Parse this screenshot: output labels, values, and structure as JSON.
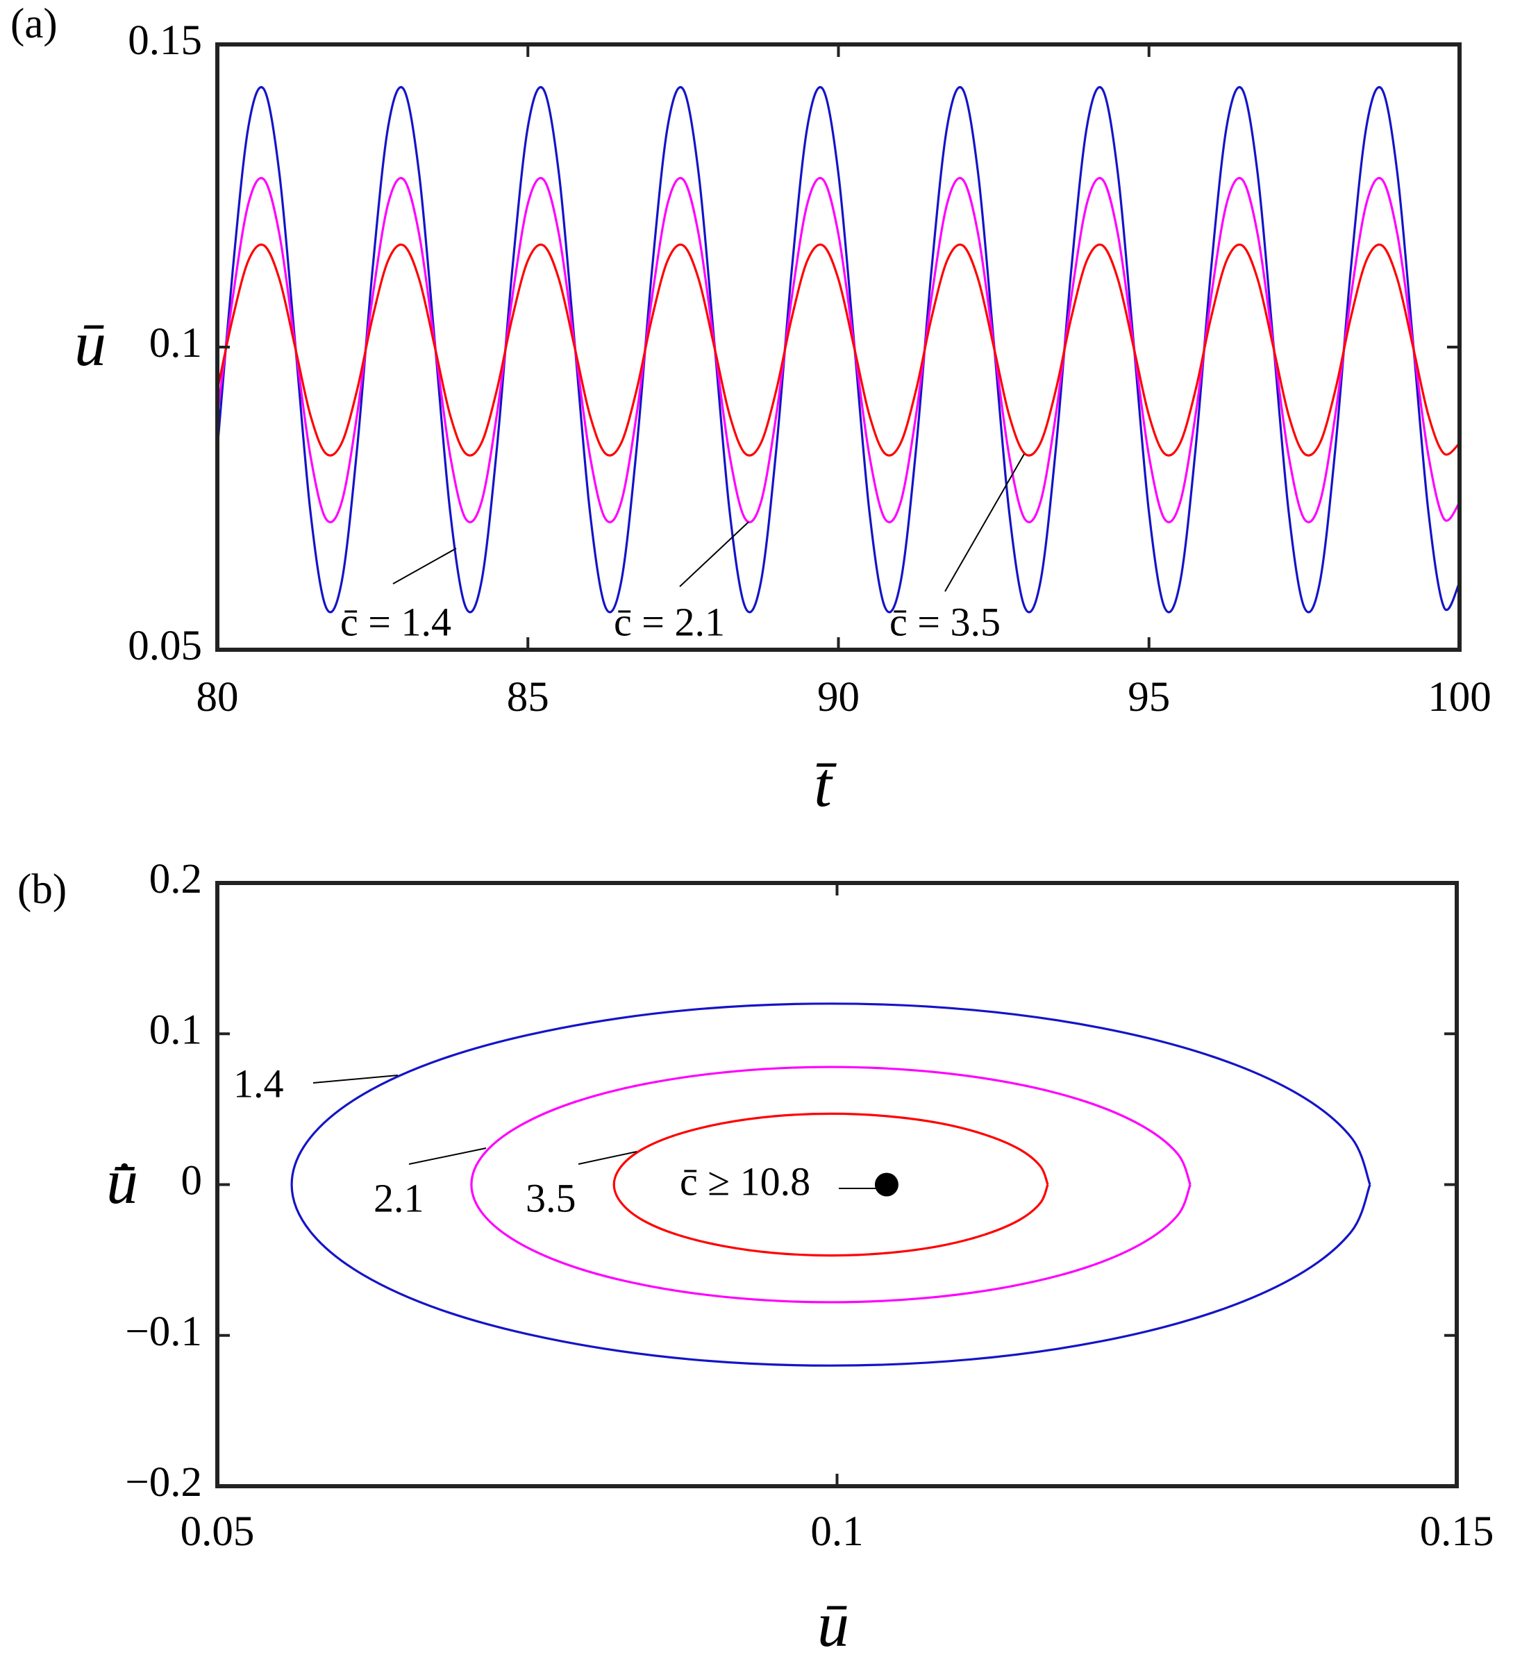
{
  "chart_data": [
    {
      "type": "line",
      "panel": "(a)",
      "xlabel": "t̄",
      "ylabel": "ū",
      "xlim": [
        80,
        100
      ],
      "ylim": [
        0.05,
        0.15
      ],
      "xticks": [
        80,
        85,
        90,
        95,
        100
      ],
      "yticks": [
        0.05,
        0.1,
        0.15
      ],
      "x": [
        80,
        80.25,
        80.5,
        80.75,
        81,
        81.25,
        81.5,
        81.75,
        82,
        82.25,
        82.5,
        82.75,
        83,
        83.25,
        83.5,
        83.75,
        84,
        84.25,
        84.5,
        84.75,
        85,
        85.25,
        85.5,
        85.75,
        86,
        86.25,
        86.5,
        86.75,
        87,
        87.25,
        87.5,
        87.75,
        88,
        88.25,
        88.5,
        88.75,
        89,
        89.25,
        89.5,
        89.75,
        90,
        90.25,
        90.5,
        90.75,
        91,
        91.25,
        91.5,
        91.75,
        92,
        92.25,
        92.5,
        92.75,
        93,
        93.25,
        93.5,
        93.75,
        94,
        94.25,
        94.5,
        94.75,
        95,
        95.25,
        95.5,
        95.75,
        96,
        96.25,
        96.5,
        96.75,
        97,
        97.25,
        97.5,
        97.75,
        98,
        98.25,
        98.5,
        98.75,
        99,
        99.25,
        99.5,
        99.75,
        100
      ],
      "series": [
        {
          "name": "c̄ = 1.4",
          "color": "#1414c8",
          "values": [
            0.0832,
            0.1129,
            0.1364,
            0.1426,
            0.1286,
            0.101,
            0.0727,
            0.057,
            0.0611,
            0.0832,
            0.1129,
            0.1364,
            0.1426,
            0.1286,
            0.101,
            0.0727,
            0.057,
            0.0611,
            0.0832,
            0.1129,
            0.1364,
            0.1426,
            0.1286,
            0.101,
            0.0727,
            0.057,
            0.0611,
            0.0832,
            0.1129,
            0.1364,
            0.1426,
            0.1286,
            0.101,
            0.0727,
            0.057,
            0.0611,
            0.0832,
            0.1129,
            0.1364,
            0.1426,
            0.1286,
            0.101,
            0.0727,
            0.057,
            0.0611,
            0.0832,
            0.1129,
            0.1364,
            0.1426,
            0.1286,
            0.101,
            0.0727,
            0.057,
            0.0611,
            0.0832,
            0.1129,
            0.1364,
            0.1426,
            0.1286,
            0.101,
            0.0727,
            0.057,
            0.0611,
            0.0832,
            0.1129,
            0.1364,
            0.1426,
            0.1286,
            0.101,
            0.0727,
            0.057,
            0.0611,
            0.0832,
            0.1129,
            0.1364,
            0.1426,
            0.1286,
            0.101,
            0.0727,
            0.057,
            0.0611
          ]
        },
        {
          "name": "c̄ = 2.1",
          "color": "#ff00ff",
          "values": [
            0.0888,
            0.1083,
            0.1237,
            0.1277,
            0.1186,
            0.1005,
            0.082,
            0.0716,
            0.0743,
            0.0888,
            0.1083,
            0.1237,
            0.1277,
            0.1186,
            0.1005,
            0.082,
            0.0716,
            0.0743,
            0.0888,
            0.1083,
            0.1237,
            0.1277,
            0.1186,
            0.1005,
            0.082,
            0.0716,
            0.0743,
            0.0888,
            0.1083,
            0.1237,
            0.1277,
            0.1186,
            0.1005,
            0.082,
            0.0716,
            0.0743,
            0.0888,
            0.1083,
            0.1237,
            0.1277,
            0.1186,
            0.1005,
            0.082,
            0.0716,
            0.0743,
            0.0888,
            0.1083,
            0.1237,
            0.1277,
            0.1186,
            0.1005,
            0.082,
            0.0716,
            0.0743,
            0.0888,
            0.1083,
            0.1237,
            0.1277,
            0.1186,
            0.1005,
            0.082,
            0.0716,
            0.0743,
            0.0888,
            0.1083,
            0.1237,
            0.1277,
            0.1186,
            0.1005,
            0.082,
            0.0716,
            0.0743,
            0.0888,
            0.1083,
            0.1237,
            0.1277,
            0.1186,
            0.1005,
            0.082,
            0.0716,
            0.0743
          ]
        },
        {
          "name": "c̄ = 3.5",
          "color": "#ff0000",
          "values": [
            0.0929,
            0.1049,
            0.1143,
            0.1168,
            0.1112,
            0.1001,
            0.0887,
            0.0824,
            0.0841,
            0.0929,
            0.1049,
            0.1143,
            0.1168,
            0.1112,
            0.1001,
            0.0887,
            0.0824,
            0.0841,
            0.0929,
            0.1049,
            0.1143,
            0.1168,
            0.1112,
            0.1001,
            0.0887,
            0.0824,
            0.0841,
            0.0929,
            0.1049,
            0.1143,
            0.1168,
            0.1112,
            0.1001,
            0.0887,
            0.0824,
            0.0841,
            0.0929,
            0.1049,
            0.1143,
            0.1168,
            0.1112,
            0.1001,
            0.0887,
            0.0824,
            0.0841,
            0.0929,
            0.1049,
            0.1143,
            0.1168,
            0.1112,
            0.1001,
            0.0887,
            0.0824,
            0.0841,
            0.0929,
            0.1049,
            0.1143,
            0.1168,
            0.1112,
            0.1001,
            0.0887,
            0.0824,
            0.0841,
            0.0929,
            0.1049,
            0.1143,
            0.1168,
            0.1112,
            0.1001,
            0.0887,
            0.0824,
            0.0841,
            0.0929,
            0.1049,
            0.1143,
            0.1168,
            0.1112,
            0.1001,
            0.0887,
            0.0824,
            0.0841
          ]
        }
      ]
    },
    {
      "type": "line",
      "panel": "(b)",
      "xlabel": "ū",
      "ylabel": "u̇̄",
      "xlim": [
        0.05,
        0.15
      ],
      "ylim": [
        -0.2,
        0.2
      ],
      "xticks": [
        0.05,
        0.1,
        0.15
      ],
      "yticks": [
        {
          "value": -0.2,
          "label": "−0.2"
        },
        {
          "value": -0.1,
          "label": "−0.1"
        },
        0,
        0.1,
        0.2
      ],
      "series": [
        {
          "name": "1.4",
          "color": "#1414c8",
          "x": [
            0.143,
            0.1415,
            0.1372,
            0.1303,
            0.1213,
            0.1108,
            0.0995,
            0.0882,
            0.0778,
            0.0687,
            0.0618,
            0.0575,
            0.056,
            0.0575,
            0.0618,
            0.0687,
            0.0778,
            0.0882,
            0.0995,
            0.1108,
            0.1213,
            0.1303,
            0.1372,
            0.1415,
            0.143
          ],
          "values": [
            0,
            0.0311,
            0.06,
            0.0849,
            0.1039,
            0.1159,
            0.12,
            0.1159,
            0.1039,
            0.0849,
            0.06,
            0.0311,
            0,
            -0.0311,
            -0.06,
            -0.0849,
            -0.1039,
            -0.1159,
            -0.12,
            -0.1159,
            -0.1039,
            -0.0849,
            -0.06,
            -0.0311,
            0
          ]
        },
        {
          "name": "2.1",
          "color": "#ff00ff",
          "x": [
            0.1285,
            0.1275,
            0.1246,
            0.12,
            0.114,
            0.107,
            0.0995,
            0.092,
            0.085,
            0.079,
            0.0744,
            0.0715,
            0.0705,
            0.0715,
            0.0744,
            0.079,
            0.085,
            0.092,
            0.0995,
            0.107,
            0.114,
            0.12,
            0.1246,
            0.1275,
            0.1285
          ],
          "values": [
            0,
            0.0202,
            0.039,
            0.0552,
            0.0675,
            0.0753,
            0.078,
            0.0753,
            0.0675,
            0.0552,
            0.039,
            0.0202,
            0,
            -0.0202,
            -0.039,
            -0.0552,
            -0.0675,
            -0.0753,
            -0.078,
            -0.0753,
            -0.0675,
            -0.0552,
            -0.039,
            -0.0202,
            0
          ]
        },
        {
          "name": "3.5",
          "color": "#ff0000",
          "x": [
            0.117,
            0.1164,
            0.1147,
            0.1119,
            0.1083,
            0.104,
            0.0995,
            0.095,
            0.0908,
            0.0871,
            0.0843,
            0.0826,
            0.082,
            0.0826,
            0.0843,
            0.0871,
            0.0908,
            0.095,
            0.0995,
            0.104,
            0.1083,
            0.1119,
            0.1147,
            0.1164,
            0.117
          ],
          "values": [
            0,
            0.0122,
            0.0235,
            0.0332,
            0.0407,
            0.0454,
            0.047,
            0.0454,
            0.0407,
            0.0332,
            0.0235,
            0.0122,
            0,
            -0.0122,
            -0.0235,
            -0.0332,
            -0.0407,
            -0.0454,
            -0.047,
            -0.0454,
            -0.0407,
            -0.0332,
            -0.0235,
            -0.0122,
            0
          ]
        },
        {
          "name": "c̄ ≥ 10.8",
          "color": "#000000",
          "marker": true,
          "x": [
            0.104
          ],
          "values": [
            0
          ]
        }
      ]
    }
  ]
}
